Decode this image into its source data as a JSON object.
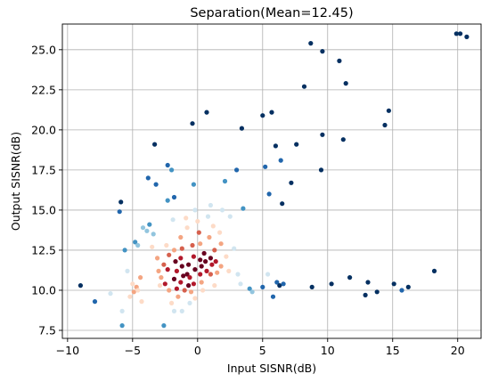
{
  "chart_data": {
    "type": "scatter",
    "title": "Separation(Mean=12.45)",
    "xlabel": "Input SISNR(dB)",
    "ylabel": "Output SISNR(dB)",
    "xlim": [
      -10.4,
      21.8
    ],
    "ylim": [
      7.0,
      26.6
    ],
    "xticks": [
      -10,
      -5,
      0,
      5,
      10,
      15,
      20
    ],
    "xtick_labels": [
      "−10",
      "−5",
      "0",
      "5",
      "10",
      "15",
      "20"
    ],
    "yticks": [
      7.5,
      10.0,
      12.5,
      15.0,
      17.5,
      20.0,
      22.5,
      25.0
    ],
    "ytick_labels": [
      "7.5",
      "10.0",
      "12.5",
      "15.0",
      "17.5",
      "20.0",
      "22.5",
      "25.0"
    ],
    "grid": true,
    "colormap": "RdBu (point color by density, dark red = dense, dark blue = sparse)",
    "colors": {
      "dark_red": "#67001f",
      "red": "#b2182b",
      "orange_red": "#d6604d",
      "salmon": "#f4a582",
      "peach": "#fddbc7",
      "pale_blue": "#d1e5f0",
      "light_blue": "#92c5de",
      "mid_blue": "#4393c3",
      "blue": "#2166ac",
      "dark_blue": "#053061"
    },
    "points": [
      {
        "x": -9.0,
        "y": 10.3,
        "c": "dark_blue"
      },
      {
        "x": -7.9,
        "y": 9.3,
        "c": "blue"
      },
      {
        "x": -6.7,
        "y": 9.8,
        "c": "pale_blue"
      },
      {
        "x": -5.9,
        "y": 15.5,
        "c": "dark_blue"
      },
      {
        "x": -6.0,
        "y": 14.9,
        "c": "blue"
      },
      {
        "x": -5.6,
        "y": 12.5,
        "c": "mid_blue"
      },
      {
        "x": -5.8,
        "y": 8.7,
        "c": "pale_blue"
      },
      {
        "x": -5.8,
        "y": 7.8,
        "c": "mid_blue"
      },
      {
        "x": -5.4,
        "y": 11.2,
        "c": "pale_blue"
      },
      {
        "x": -5.0,
        "y": 10.4,
        "c": "peach"
      },
      {
        "x": -4.9,
        "y": 9.9,
        "c": "salmon"
      },
      {
        "x": -4.7,
        "y": 10.2,
        "c": "salmon"
      },
      {
        "x": -4.6,
        "y": 10.0,
        "c": "peach"
      },
      {
        "x": -5.2,
        "y": 9.6,
        "c": "peach"
      },
      {
        "x": -4.8,
        "y": 13.0,
        "c": "mid_blue"
      },
      {
        "x": -4.6,
        "y": 12.8,
        "c": "light_blue"
      },
      {
        "x": -4.4,
        "y": 10.8,
        "c": "salmon"
      },
      {
        "x": -4.3,
        "y": 9.3,
        "c": "peach"
      },
      {
        "x": -4.2,
        "y": 13.9,
        "c": "light_blue"
      },
      {
        "x": -3.9,
        "y": 13.7,
        "c": "light_blue"
      },
      {
        "x": -3.7,
        "y": 14.1,
        "c": "mid_blue"
      },
      {
        "x": -3.8,
        "y": 17.0,
        "c": "blue"
      },
      {
        "x": -3.3,
        "y": 19.1,
        "c": "dark_blue"
      },
      {
        "x": -3.2,
        "y": 16.6,
        "c": "blue"
      },
      {
        "x": -3.4,
        "y": 13.5,
        "c": "light_blue"
      },
      {
        "x": -3.5,
        "y": 12.7,
        "c": "peach"
      },
      {
        "x": -3.1,
        "y": 12.0,
        "c": "salmon"
      },
      {
        "x": -3.0,
        "y": 11.2,
        "c": "salmon"
      },
      {
        "x": -2.8,
        "y": 10.8,
        "c": "salmon"
      },
      {
        "x": -2.6,
        "y": 11.6,
        "c": "orange_red"
      },
      {
        "x": -2.9,
        "y": 10.3,
        "c": "peach"
      },
      {
        "x": -2.6,
        "y": 7.8,
        "c": "mid_blue"
      },
      {
        "x": -2.3,
        "y": 15.6,
        "c": "mid_blue"
      },
      {
        "x": -2.4,
        "y": 12.8,
        "c": "peach"
      },
      {
        "x": -2.2,
        "y": 12.2,
        "c": "orange_red"
      },
      {
        "x": -2.3,
        "y": 11.3,
        "c": "red"
      },
      {
        "x": -2.5,
        "y": 10.4,
        "c": "red"
      },
      {
        "x": -2.2,
        "y": 10.0,
        "c": "salmon"
      },
      {
        "x": -2.0,
        "y": 9.2,
        "c": "peach"
      },
      {
        "x": -2.3,
        "y": 17.8,
        "c": "blue"
      },
      {
        "x": -2.0,
        "y": 17.5,
        "c": "mid_blue"
      },
      {
        "x": -1.8,
        "y": 15.8,
        "c": "blue"
      },
      {
        "x": -1.9,
        "y": 14.4,
        "c": "pale_blue"
      },
      {
        "x": -1.8,
        "y": 12.5,
        "c": "salmon"
      },
      {
        "x": -1.7,
        "y": 11.8,
        "c": "dark_red"
      },
      {
        "x": -1.6,
        "y": 11.2,
        "c": "red"
      },
      {
        "x": -1.8,
        "y": 10.7,
        "c": "dark_red"
      },
      {
        "x": -1.6,
        "y": 10.1,
        "c": "red"
      },
      {
        "x": -1.5,
        "y": 9.6,
        "c": "salmon"
      },
      {
        "x": -1.8,
        "y": 8.7,
        "c": "pale_blue"
      },
      {
        "x": -1.3,
        "y": 13.3,
        "c": "salmon"
      },
      {
        "x": -1.2,
        "y": 12.6,
        "c": "orange_red"
      },
      {
        "x": -1.3,
        "y": 12.0,
        "c": "red"
      },
      {
        "x": -1.2,
        "y": 11.5,
        "c": "dark_red"
      },
      {
        "x": -1.1,
        "y": 10.9,
        "c": "dark_red"
      },
      {
        "x": -1.3,
        "y": 10.5,
        "c": "red"
      },
      {
        "x": -1.0,
        "y": 10.0,
        "c": "orange_red"
      },
      {
        "x": -1.2,
        "y": 8.7,
        "c": "pale_blue"
      },
      {
        "x": -0.9,
        "y": 14.5,
        "c": "peach"
      },
      {
        "x": -0.8,
        "y": 13.9,
        "c": "peach"
      },
      {
        "x": -0.7,
        "y": 11.6,
        "c": "dark_red"
      },
      {
        "x": -0.8,
        "y": 11.0,
        "c": "dark_red"
      },
      {
        "x": -0.6,
        "y": 10.8,
        "c": "red"
      },
      {
        "x": -0.7,
        "y": 10.3,
        "c": "dark_red"
      },
      {
        "x": -0.5,
        "y": 9.9,
        "c": "salmon"
      },
      {
        "x": -0.4,
        "y": 12.8,
        "c": "orange_red"
      },
      {
        "x": -0.3,
        "y": 12.1,
        "c": "red"
      },
      {
        "x": -0.2,
        "y": 11.3,
        "c": "dark_red"
      },
      {
        "x": -0.3,
        "y": 10.4,
        "c": "red"
      },
      {
        "x": -0.2,
        "y": 9.5,
        "c": "peach"
      },
      {
        "x": -0.6,
        "y": 9.2,
        "c": "pale_blue"
      },
      {
        "x": -0.4,
        "y": 20.4,
        "c": "dark_blue"
      },
      {
        "x": -0.3,
        "y": 16.6,
        "c": "mid_blue"
      },
      {
        "x": -0.2,
        "y": 15.0,
        "c": "pale_blue"
      },
      {
        "x": 0.0,
        "y": 14.3,
        "c": "peach"
      },
      {
        "x": 0.1,
        "y": 13.6,
        "c": "orange_red"
      },
      {
        "x": 0.2,
        "y": 12.9,
        "c": "salmon"
      },
      {
        "x": 0.2,
        "y": 11.9,
        "c": "dark_red"
      },
      {
        "x": 0.3,
        "y": 11.5,
        "c": "dark_red"
      },
      {
        "x": 0.2,
        "y": 11.0,
        "c": "red"
      },
      {
        "x": 0.3,
        "y": 10.5,
        "c": "salmon"
      },
      {
        "x": 0.4,
        "y": 10.0,
        "c": "peach"
      },
      {
        "x": 0.5,
        "y": 12.3,
        "c": "dark_red"
      },
      {
        "x": 0.6,
        "y": 11.8,
        "c": "dark_red"
      },
      {
        "x": 0.7,
        "y": 11.2,
        "c": "red"
      },
      {
        "x": 0.7,
        "y": 21.1,
        "c": "dark_blue"
      },
      {
        "x": 0.8,
        "y": 14.6,
        "c": "pale_blue"
      },
      {
        "x": 0.9,
        "y": 13.3,
        "c": "salmon"
      },
      {
        "x": 1.0,
        "y": 12.0,
        "c": "dark_red"
      },
      {
        "x": 1.1,
        "y": 11.6,
        "c": "red"
      },
      {
        "x": 1.0,
        "y": 11.0,
        "c": "orange_red"
      },
      {
        "x": 1.0,
        "y": 15.3,
        "c": "pale_blue"
      },
      {
        "x": 1.2,
        "y": 14.0,
        "c": "peach"
      },
      {
        "x": 1.3,
        "y": 12.5,
        "c": "orange_red"
      },
      {
        "x": 1.4,
        "y": 11.8,
        "c": "red"
      },
      {
        "x": 1.5,
        "y": 11.1,
        "c": "salmon"
      },
      {
        "x": 1.3,
        "y": 10.3,
        "c": "peach"
      },
      {
        "x": 1.7,
        "y": 13.6,
        "c": "peach"
      },
      {
        "x": 1.8,
        "y": 12.9,
        "c": "salmon"
      },
      {
        "x": 1.8,
        "y": 11.5,
        "c": "salmon"
      },
      {
        "x": 1.9,
        "y": 15.0,
        "c": "pale_blue"
      },
      {
        "x": 2.1,
        "y": 16.8,
        "c": "mid_blue"
      },
      {
        "x": 2.2,
        "y": 12.1,
        "c": "peach"
      },
      {
        "x": 2.4,
        "y": 11.2,
        "c": "peach"
      },
      {
        "x": 2.5,
        "y": 14.6,
        "c": "pale_blue"
      },
      {
        "x": 2.8,
        "y": 12.6,
        "c": "pale_blue"
      },
      {
        "x": 3.0,
        "y": 17.5,
        "c": "blue"
      },
      {
        "x": 3.1,
        "y": 11.0,
        "c": "pale_blue"
      },
      {
        "x": 3.4,
        "y": 20.1,
        "c": "dark_blue"
      },
      {
        "x": 3.5,
        "y": 15.1,
        "c": "mid_blue"
      },
      {
        "x": 3.3,
        "y": 10.4,
        "c": "pale_blue"
      },
      {
        "x": 4.0,
        "y": 10.1,
        "c": "mid_blue"
      },
      {
        "x": 4.2,
        "y": 9.9,
        "c": "light_blue"
      },
      {
        "x": 5.0,
        "y": 10.2,
        "c": "blue"
      },
      {
        "x": 5.0,
        "y": 20.9,
        "c": "dark_blue"
      },
      {
        "x": 5.2,
        "y": 17.7,
        "c": "blue"
      },
      {
        "x": 5.4,
        "y": 11.0,
        "c": "pale_blue"
      },
      {
        "x": 5.5,
        "y": 16.0,
        "c": "blue"
      },
      {
        "x": 5.7,
        "y": 21.1,
        "c": "dark_blue"
      },
      {
        "x": 5.8,
        "y": 9.6,
        "c": "blue"
      },
      {
        "x": 6.0,
        "y": 19.0,
        "c": "dark_blue"
      },
      {
        "x": 6.1,
        "y": 10.5,
        "c": "blue"
      },
      {
        "x": 6.3,
        "y": 10.3,
        "c": "dark_blue"
      },
      {
        "x": 6.4,
        "y": 18.1,
        "c": "blue"
      },
      {
        "x": 6.5,
        "y": 15.4,
        "c": "dark_blue"
      },
      {
        "x": 6.6,
        "y": 10.4,
        "c": "blue"
      },
      {
        "x": 7.2,
        "y": 16.7,
        "c": "dark_blue"
      },
      {
        "x": 7.6,
        "y": 19.1,
        "c": "dark_blue"
      },
      {
        "x": 8.2,
        "y": 22.7,
        "c": "dark_blue"
      },
      {
        "x": 8.7,
        "y": 25.4,
        "c": "dark_blue"
      },
      {
        "x": 8.8,
        "y": 10.2,
        "c": "dark_blue"
      },
      {
        "x": 9.5,
        "y": 17.5,
        "c": "dark_blue"
      },
      {
        "x": 9.6,
        "y": 19.7,
        "c": "dark_blue"
      },
      {
        "x": 9.6,
        "y": 24.9,
        "c": "dark_blue"
      },
      {
        "x": 10.3,
        "y": 10.4,
        "c": "dark_blue"
      },
      {
        "x": 10.9,
        "y": 24.3,
        "c": "dark_blue"
      },
      {
        "x": 11.2,
        "y": 19.4,
        "c": "dark_blue"
      },
      {
        "x": 11.4,
        "y": 22.9,
        "c": "dark_blue"
      },
      {
        "x": 11.7,
        "y": 10.8,
        "c": "dark_blue"
      },
      {
        "x": 12.9,
        "y": 9.7,
        "c": "dark_blue"
      },
      {
        "x": 13.1,
        "y": 10.5,
        "c": "dark_blue"
      },
      {
        "x": 13.8,
        "y": 9.9,
        "c": "dark_blue"
      },
      {
        "x": 14.4,
        "y": 20.3,
        "c": "dark_blue"
      },
      {
        "x": 14.7,
        "y": 21.2,
        "c": "dark_blue"
      },
      {
        "x": 15.1,
        "y": 10.4,
        "c": "dark_blue"
      },
      {
        "x": 15.7,
        "y": 10.0,
        "c": "blue"
      },
      {
        "x": 16.2,
        "y": 10.2,
        "c": "dark_blue"
      },
      {
        "x": 18.2,
        "y": 11.2,
        "c": "dark_blue"
      },
      {
        "x": 19.9,
        "y": 26.0,
        "c": "dark_blue"
      },
      {
        "x": 20.2,
        "y": 26.0,
        "c": "dark_blue"
      },
      {
        "x": 20.7,
        "y": 25.8,
        "c": "dark_blue"
      }
    ]
  }
}
